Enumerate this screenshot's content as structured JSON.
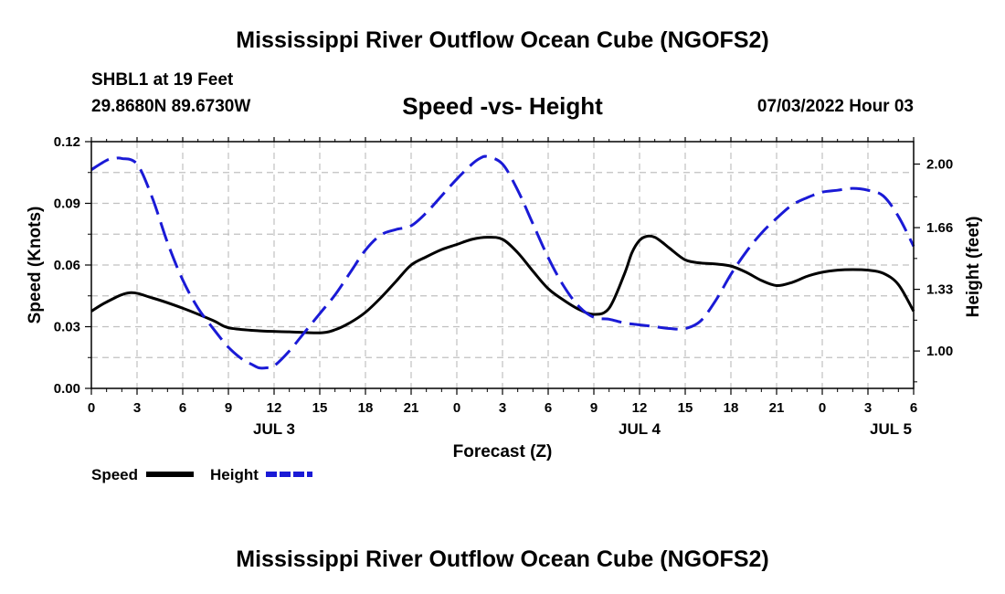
{
  "page": {
    "title": "Mississippi River Outflow Ocean Cube (NGOFS2)",
    "footer_title": "Mississippi River Outflow Ocean Cube (NGOFS2)",
    "station": "SHBL1 at 19 Feet",
    "coordinates": "29.8680N  89.6730W",
    "subtitle": "Speed -vs- Height",
    "datetime": "07/03/2022 Hour 03"
  },
  "chart_data": {
    "type": "line",
    "title": "Speed -vs- Height",
    "xlabel": "Forecast (Z)",
    "ylabel": "Speed (Knots)",
    "y2label": "Height (feet)",
    "x_range": [
      0,
      54
    ],
    "x_ticks": [
      0,
      3,
      6,
      9,
      12,
      15,
      18,
      21,
      24,
      27,
      30,
      33,
      36,
      39,
      42,
      45,
      48,
      51,
      54
    ],
    "x_tick_labels": [
      "0",
      "3",
      "6",
      "9",
      "12",
      "15",
      "18",
      "21",
      "0",
      "3",
      "6",
      "9",
      "12",
      "15",
      "18",
      "21",
      "0",
      "3",
      "6"
    ],
    "date_labels": [
      {
        "hour": 12,
        "label": "JUL 3"
      },
      {
        "hour": 36,
        "label": "JUL 4"
      },
      {
        "hour": 52.5,
        "label": "JUL 5"
      }
    ],
    "ylim": [
      0,
      0.12
    ],
    "y_ticks": [
      0,
      0.03,
      0.06,
      0.09,
      0.12
    ],
    "y_tick_labels": [
      "0.00",
      "0.03",
      "0.06",
      "0.09",
      "0.12"
    ],
    "y2lim": [
      0.8,
      2.12
    ],
    "y2_ticks": [
      1.0,
      1.33,
      1.66,
      2.0
    ],
    "y2_tick_labels": [
      "1.00",
      "1.33",
      "1.66",
      "2.00"
    ],
    "grid": true,
    "legend": "bottom-left",
    "series": [
      {
        "name": "Speed",
        "axis": "left",
        "color": "#000000",
        "dash": "solid",
        "x": [
          0,
          1,
          2.5,
          4,
          6,
          8,
          9,
          11,
          13,
          15,
          16,
          17,
          18,
          19,
          20,
          21,
          22,
          23,
          24,
          25,
          26,
          27,
          28,
          29,
          30,
          31,
          32,
          33,
          34,
          35,
          35.5,
          36,
          36.5,
          37,
          37.5,
          38,
          39,
          40,
          41,
          42,
          43,
          44,
          45,
          46,
          47,
          48,
          49,
          50,
          51,
          52,
          53,
          54
        ],
        "values": [
          0.0375,
          0.042,
          0.0465,
          0.044,
          0.039,
          0.033,
          0.0295,
          0.028,
          0.0275,
          0.027,
          0.0285,
          0.032,
          0.037,
          0.044,
          0.052,
          0.06,
          0.064,
          0.0675,
          0.07,
          0.0725,
          0.0735,
          0.0725,
          0.066,
          0.057,
          0.0485,
          0.043,
          0.0385,
          0.036,
          0.039,
          0.0555,
          0.066,
          0.072,
          0.074,
          0.0735,
          0.071,
          0.068,
          0.0625,
          0.061,
          0.0605,
          0.0595,
          0.0565,
          0.0525,
          0.05,
          0.0515,
          0.0545,
          0.0565,
          0.0575,
          0.0578,
          0.0575,
          0.056,
          0.0505,
          0.0375
        ]
      },
      {
        "name": "Height",
        "axis": "right",
        "color": "#1a1ad6",
        "dash": "dashed",
        "x": [
          0,
          1,
          1.5,
          2,
          3,
          4,
          5,
          6,
          7,
          8,
          9,
          10,
          10.5,
          11,
          11.5,
          12,
          13,
          14,
          15,
          16,
          17,
          18,
          19,
          20,
          21,
          22,
          23,
          24,
          25,
          25.5,
          26,
          27,
          28,
          29,
          30,
          31,
          32,
          33,
          34,
          35,
          36,
          37,
          38,
          39,
          40,
          41,
          42,
          43,
          44,
          45,
          46,
          47,
          48,
          49,
          50,
          51,
          52,
          53,
          54
        ],
        "values": [
          1.97,
          2.02,
          2.03,
          2.03,
          2.0,
          1.82,
          1.58,
          1.38,
          1.23,
          1.12,
          1.02,
          0.95,
          0.93,
          0.91,
          0.91,
          0.92,
          1.0,
          1.1,
          1.2,
          1.3,
          1.42,
          1.54,
          1.62,
          1.65,
          1.67,
          1.74,
          1.83,
          1.92,
          2.0,
          2.03,
          2.04,
          2.0,
          1.86,
          1.68,
          1.5,
          1.35,
          1.24,
          1.18,
          1.17,
          1.15,
          1.14,
          1.13,
          1.12,
          1.12,
          1.16,
          1.27,
          1.41,
          1.53,
          1.63,
          1.71,
          1.78,
          1.82,
          1.85,
          1.86,
          1.87,
          1.86,
          1.83,
          1.72,
          1.56
        ]
      }
    ]
  }
}
